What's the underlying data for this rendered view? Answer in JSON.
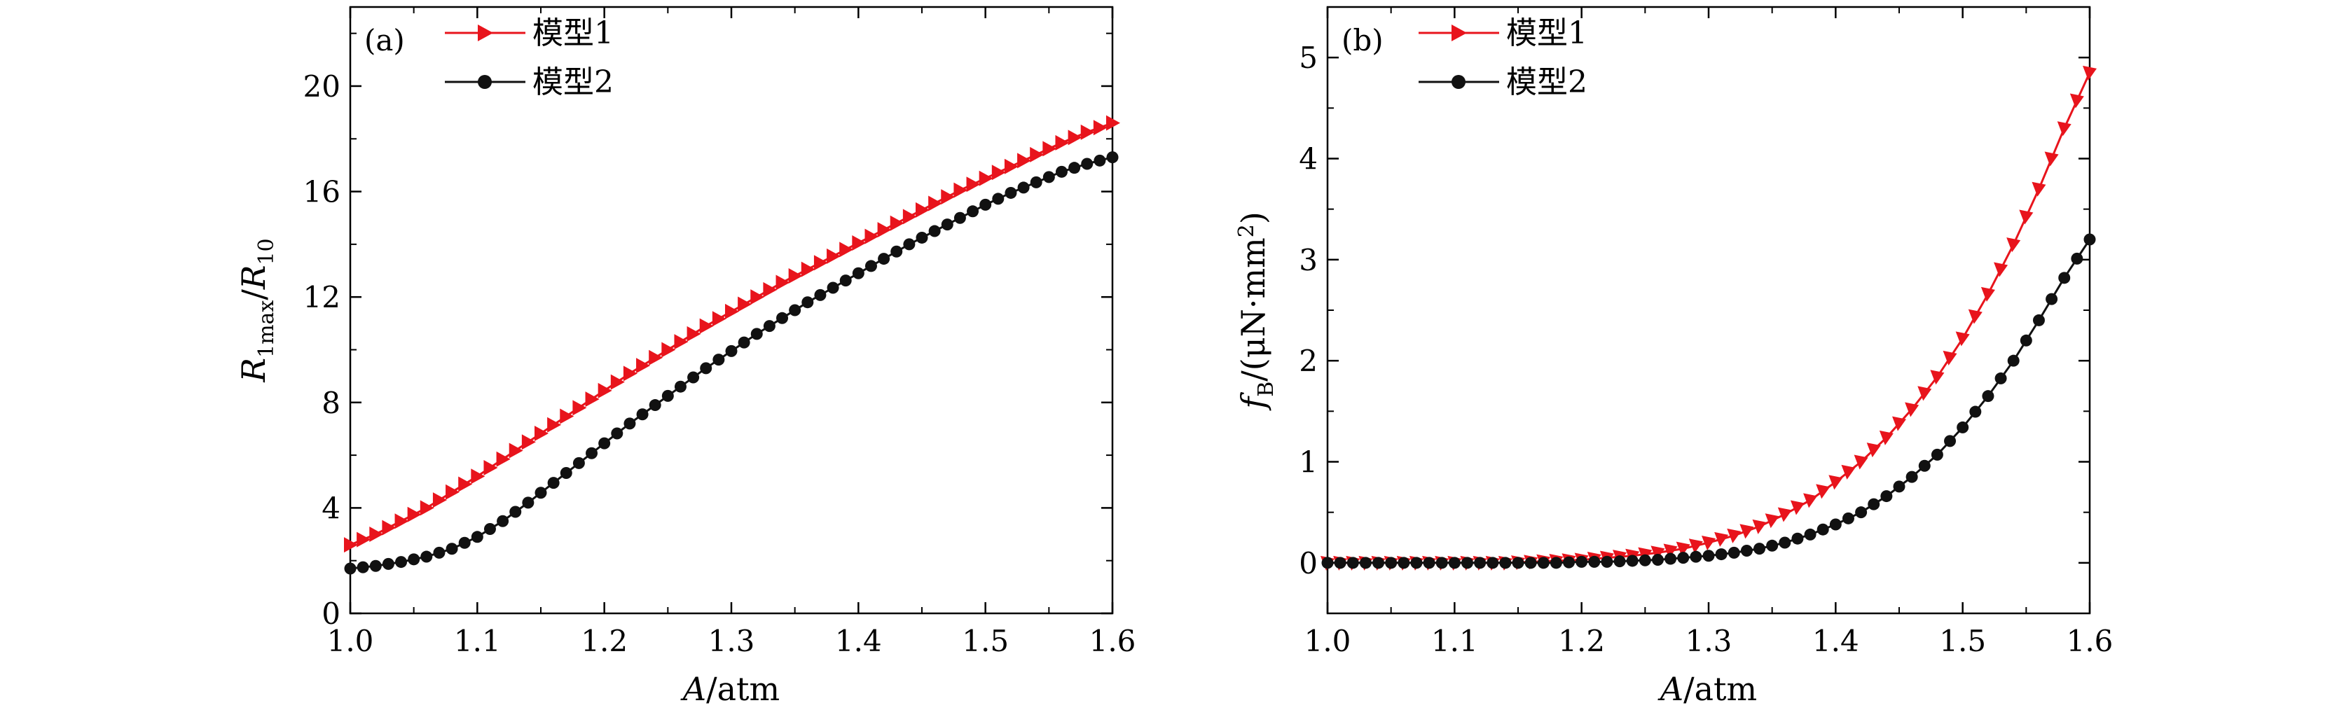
{
  "chart_data": [
    {
      "type": "line",
      "panel_label": "(a)",
      "xlabel": "A/atm",
      "xlabel_parts": {
        "main": "A",
        "unit": "/atm"
      },
      "ylabel": "R1max/R10",
      "ylabel_parts": {
        "r1": "R",
        "sub1": "1max",
        "slash": "/",
        "r2": "R",
        "sub2": "10"
      },
      "xlim": [
        1.0,
        1.6
      ],
      "ylim": [
        0,
        23
      ],
      "xticks": [
        1.0,
        1.1,
        1.2,
        1.3,
        1.4,
        1.5,
        1.6
      ],
      "xtick_labels": [
        "1.0",
        "1.1",
        "1.2",
        "1.3",
        "1.4",
        "1.5",
        "1.6"
      ],
      "yticks": [
        0,
        4,
        8,
        12,
        16,
        20
      ],
      "ytick_labels": [
        "0",
        "4",
        "8",
        "12",
        "16",
        "20"
      ],
      "legend_position": "top-left",
      "series": [
        {
          "name": "模型1",
          "color": "#e8141c",
          "marker": "triangle-right",
          "x": [
            1.0,
            1.02,
            1.04,
            1.06,
            1.08,
            1.1,
            1.12,
            1.14,
            1.16,
            1.18,
            1.2,
            1.22,
            1.24,
            1.26,
            1.28,
            1.3,
            1.32,
            1.34,
            1.36,
            1.38,
            1.4,
            1.42,
            1.44,
            1.46,
            1.48,
            1.5,
            1.52,
            1.54,
            1.56,
            1.58,
            1.6
          ],
          "values": [
            2.6,
            3.0,
            3.5,
            4.0,
            4.6,
            5.2,
            5.85,
            6.5,
            7.15,
            7.8,
            8.45,
            9.1,
            9.7,
            10.3,
            10.9,
            11.45,
            12.0,
            12.55,
            13.05,
            13.55,
            14.05,
            14.55,
            15.05,
            15.55,
            16.05,
            16.5,
            16.95,
            17.4,
            17.85,
            18.25,
            18.6
          ]
        },
        {
          "name": "模型2",
          "color": "#111111",
          "marker": "circle",
          "x": [
            1.0,
            1.02,
            1.04,
            1.06,
            1.08,
            1.1,
            1.12,
            1.14,
            1.16,
            1.18,
            1.2,
            1.22,
            1.24,
            1.26,
            1.28,
            1.3,
            1.32,
            1.34,
            1.36,
            1.38,
            1.4,
            1.42,
            1.44,
            1.46,
            1.48,
            1.5,
            1.52,
            1.54,
            1.56,
            1.58,
            1.6
          ],
          "values": [
            1.7,
            1.8,
            1.95,
            2.15,
            2.45,
            2.9,
            3.5,
            4.2,
            4.95,
            5.7,
            6.45,
            7.2,
            7.9,
            8.6,
            9.3,
            9.95,
            10.6,
            11.2,
            11.8,
            12.35,
            12.9,
            13.45,
            14.0,
            14.5,
            15.0,
            15.5,
            15.95,
            16.35,
            16.75,
            17.05,
            17.3
          ]
        }
      ]
    },
    {
      "type": "line",
      "panel_label": "(b)",
      "xlabel": "A/atm",
      "xlabel_parts": {
        "main": "A",
        "unit": "/atm"
      },
      "ylabel": "fB/(μN·mm²)",
      "ylabel_parts": {
        "main": "f",
        "sub": "B",
        "unit": "/(μN·mm",
        "sup": "2",
        "close": ")"
      },
      "xlim": [
        1.0,
        1.6
      ],
      "ylim": [
        -0.5,
        5.5
      ],
      "xticks": [
        1.0,
        1.1,
        1.2,
        1.3,
        1.4,
        1.5,
        1.6
      ],
      "xtick_labels": [
        "1.0",
        "1.1",
        "1.2",
        "1.3",
        "1.4",
        "1.5",
        "1.6"
      ],
      "yticks": [
        0,
        1,
        2,
        3,
        4,
        5
      ],
      "ytick_labels": [
        "0",
        "1",
        "2",
        "3",
        "4",
        "5"
      ],
      "legend_position": "top-left",
      "series": [
        {
          "name": "模型1",
          "color": "#e8141c",
          "marker": "triangle-down-right",
          "x": [
            1.0,
            1.02,
            1.04,
            1.06,
            1.08,
            1.1,
            1.12,
            1.14,
            1.16,
            1.18,
            1.2,
            1.22,
            1.24,
            1.26,
            1.28,
            1.3,
            1.32,
            1.34,
            1.36,
            1.38,
            1.4,
            1.42,
            1.44,
            1.46,
            1.48,
            1.5,
            1.52,
            1.54,
            1.56,
            1.58,
            1.6
          ],
          "values": [
            0.0,
            0.0,
            0.0,
            0.0,
            0.0,
            0.0,
            0.0,
            0.0,
            0.01,
            0.02,
            0.03,
            0.05,
            0.07,
            0.1,
            0.14,
            0.2,
            0.27,
            0.36,
            0.48,
            0.62,
            0.8,
            1.0,
            1.24,
            1.52,
            1.84,
            2.22,
            2.66,
            3.15,
            3.7,
            4.3,
            4.85
          ]
        },
        {
          "name": "模型2",
          "color": "#111111",
          "marker": "circle",
          "x": [
            1.0,
            1.02,
            1.04,
            1.06,
            1.08,
            1.1,
            1.12,
            1.14,
            1.16,
            1.18,
            1.2,
            1.22,
            1.24,
            1.26,
            1.28,
            1.3,
            1.32,
            1.34,
            1.36,
            1.38,
            1.4,
            1.42,
            1.44,
            1.46,
            1.48,
            1.5,
            1.52,
            1.54,
            1.56,
            1.58,
            1.6
          ],
          "values": [
            0.0,
            0.0,
            0.0,
            0.0,
            0.0,
            0.0,
            0.0,
            0.0,
            0.0,
            0.0,
            0.01,
            0.01,
            0.02,
            0.03,
            0.05,
            0.07,
            0.1,
            0.14,
            0.2,
            0.28,
            0.38,
            0.5,
            0.66,
            0.85,
            1.07,
            1.34,
            1.65,
            2.0,
            2.4,
            2.82,
            3.2
          ]
        }
      ]
    }
  ]
}
